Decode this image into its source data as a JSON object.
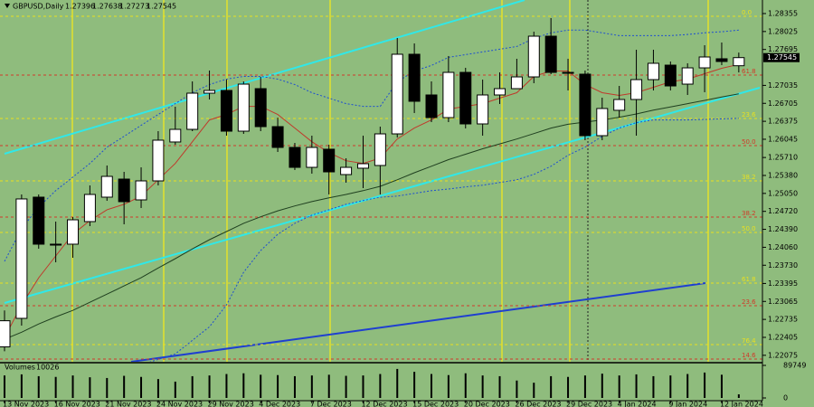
{
  "chart_data": {
    "type": "candlestick",
    "title": "GBPUSD,Daily",
    "categories": [
      "13 Nov 2023",
      null,
      null,
      "16 Nov 2023",
      null,
      null,
      "21 Nov 2023",
      null,
      null,
      "24 Nov 2023",
      null,
      null,
      "29 Nov 2023",
      null,
      null,
      "4 Dec 2023",
      null,
      null,
      "7 Dec 2023",
      null,
      null,
      "12 Dec 2023",
      null,
      null,
      "15 Dec 2023",
      null,
      null,
      "20 Dec 2023",
      null,
      null,
      "26 Dec 2023",
      null,
      null,
      "29 Dec 2023",
      null,
      null,
      "4 Jan 2024",
      null,
      null,
      "9 Jan 2024",
      null,
      null,
      "12 Jan 2024",
      null
    ],
    "open": [
      1.2223,
      1.22754,
      1.24981,
      1.24117,
      1.24117,
      1.24532,
      1.24981,
      1.25313,
      1.24931,
      1.2528,
      1.25995,
      1.26227,
      1.26892,
      1.26942,
      1.26194,
      1.26975,
      1.26277,
      1.25895,
      1.25529,
      1.25862,
      1.25396,
      1.25513,
      1.25563,
      1.26144,
      1.27607,
      1.26859,
      1.26443,
      1.27274,
      1.26327,
      1.26859,
      1.26975,
      1.27191,
      1.27939,
      1.27274,
      1.27241,
      1.26111,
      1.26577,
      1.26776,
      1.27141,
      1.27407,
      1.27058,
      1.27357,
      1.27524,
      1.27396
    ],
    "high": [
      1.229,
      1.25031,
      1.25031,
      1.24532,
      1.24615,
      1.25197,
      1.25563,
      1.25446,
      1.25529,
      1.26194,
      1.26643,
      1.27108,
      1.27308,
      1.27141,
      1.27108,
      1.27191,
      1.26443,
      1.25978,
      1.26111,
      1.25945,
      1.25695,
      1.26111,
      1.26277,
      1.27906,
      1.27806,
      1.27108,
      1.27574,
      1.27358,
      1.27141,
      1.27274,
      1.27524,
      1.28022,
      1.28272,
      1.27524,
      1.27308,
      1.26809,
      1.27025,
      1.2769,
      1.2769,
      1.27474,
      1.27441,
      1.27773,
      1.27823,
      1.27638
    ],
    "low": [
      1.2215,
      1.22621,
      1.24034,
      1.23784,
      1.23867,
      1.24449,
      1.24914,
      1.24482,
      1.24782,
      1.25197,
      1.25945,
      1.26194,
      1.26776,
      1.26111,
      1.26144,
      1.26194,
      1.25812,
      1.2548,
      1.25413,
      1.25031,
      1.25247,
      1.25147,
      1.25031,
      1.26078,
      1.26527,
      1.2636,
      1.2636,
      1.26244,
      1.26111,
      1.26693,
      1.27025,
      1.27075,
      1.27241,
      1.26942,
      1.26028,
      1.26028,
      1.26443,
      1.26111,
      1.26942,
      1.26942,
      1.26859,
      1.26909,
      1.27407,
      1.27273
    ],
    "close": [
      1.2271,
      1.24948,
      1.24117,
      1.241,
      1.24565,
      1.25031,
      1.25363,
      1.24898,
      1.2528,
      1.26028,
      1.26227,
      1.26892,
      1.26942,
      1.26194,
      1.27058,
      1.26277,
      1.25895,
      1.25529,
      1.25895,
      1.25446,
      1.25529,
      1.25596,
      1.26144,
      1.27607,
      1.26743,
      1.26443,
      1.27274,
      1.26327,
      1.26859,
      1.26975,
      1.27191,
      1.27939,
      1.27274,
      1.27258,
      1.26111,
      1.2661,
      1.26776,
      1.27141,
      1.27441,
      1.27025,
      1.27357,
      1.27557,
      1.27474,
      1.27545
    ],
    "ylim": [
      1.21956,
      1.28604
    ],
    "yticks": [
      1.28355,
      1.28025,
      1.27695,
      1.27035,
      1.26705,
      1.26375,
      1.26045,
      {
        "value": 1.2571,
        "label": "1.25710"
      },
      {
        "value": 1.2538,
        "label": "1.25380"
      },
      {
        "value": 1.2505,
        "label": "1.25050"
      },
      {
        "value": 1.2472,
        "label": "1.24720"
      },
      {
        "value": 1.2439,
        "label": "1.24390"
      },
      {
        "value": 1.2406,
        "label": "1.24060"
      },
      {
        "value": 1.2373,
        "label": "1.23730"
      },
      1.23395,
      1.23065,
      1.22735,
      1.22405,
      1.22075
    ],
    "bull_color": "#ffffff",
    "bear_color": "#000000",
    "background": "#8fbc7d",
    "overlays": [
      {
        "color": "#c0392b",
        "dash": false,
        "values": [
          1.224,
          1.23,
          1.235,
          1.239,
          1.243,
          1.2455,
          1.2475,
          1.2485,
          1.25,
          1.253,
          1.256,
          1.26,
          1.264,
          1.265,
          1.2665,
          1.2665,
          1.265,
          1.2625,
          1.26,
          1.258,
          1.2565,
          1.256,
          1.257,
          1.2605,
          1.2625,
          1.264,
          1.266,
          1.2665,
          1.267,
          1.268,
          1.269,
          1.272,
          1.273,
          1.273,
          1.2705,
          1.269,
          1.2685,
          1.269,
          1.27,
          1.271,
          1.2715,
          1.2725,
          1.2735,
          1.2742
        ]
      },
      {
        "color": "#1f3f1f",
        "dash": false,
        "values": [
          1.2237,
          1.225,
          1.2265,
          1.2278,
          1.229,
          1.2305,
          1.232,
          1.2335,
          1.235,
          1.2368,
          1.2385,
          1.2403,
          1.242,
          1.2435,
          1.245,
          1.2462,
          1.2473,
          1.2482,
          1.249,
          1.2497,
          1.2503,
          1.251,
          1.2518,
          1.253,
          1.2543,
          1.2555,
          1.2567,
          1.2577,
          1.2587,
          1.2596,
          1.2605,
          1.2615,
          1.2625,
          1.2632,
          1.2636,
          1.264,
          1.2645,
          1.2651,
          1.2658,
          1.2664,
          1.267,
          1.2676,
          1.2682,
          1.2688
        ]
      },
      {
        "color": "#1f4fd0",
        "dash": true,
        "values": [
          1.238,
          1.244,
          1.248,
          1.251,
          1.2535,
          1.256,
          1.259,
          1.261,
          1.263,
          1.265,
          1.267,
          1.269,
          1.2705,
          1.2715,
          1.272,
          1.272,
          1.2715,
          1.2705,
          1.269,
          1.268,
          1.267,
          1.2665,
          1.2665,
          1.271,
          1.273,
          1.274,
          1.2755,
          1.276,
          1.2765,
          1.277,
          1.2775,
          1.279,
          1.28,
          1.2805,
          1.2805,
          1.28,
          1.2795,
          1.2795,
          1.2795,
          1.2795,
          1.2797,
          1.28,
          1.2802,
          1.2805
        ]
      },
      {
        "color": "#1f4fd0",
        "dash": true,
        "values": [
          1.214,
          1.215,
          1.216,
          1.2165,
          1.217,
          1.2175,
          1.218,
          1.2185,
          1.219,
          1.22,
          1.221,
          1.2235,
          1.226,
          1.23,
          1.236,
          1.24,
          1.243,
          1.245,
          1.2465,
          1.2475,
          1.2485,
          1.2492,
          1.2498,
          1.25,
          1.2505,
          1.251,
          1.2513,
          1.2517,
          1.252,
          1.2525,
          1.253,
          1.254,
          1.2555,
          1.2575,
          1.259,
          1.261,
          1.2625,
          1.2635,
          1.264,
          1.264,
          1.264,
          1.2641,
          1.2642,
          1.2643
        ]
      }
    ],
    "levels": [
      {
        "label": "0.0",
        "value": 1.28305,
        "color": "#e8e020"
      },
      {
        "label": "61.8",
        "value": 1.27225,
        "color": "#d03a2a"
      },
      {
        "label": "23.6",
        "value": 1.26427,
        "color": "#e8e020"
      },
      {
        "label": "50.0",
        "value": 1.25928,
        "color": "#d03a2a"
      },
      {
        "label": "38.2",
        "value": 1.2528,
        "color": "#e8e020"
      },
      {
        "label": "38.2",
        "value": 1.24615,
        "color": "#d03a2a"
      },
      {
        "label": "50.0",
        "value": 1.24333,
        "color": "#e8e020"
      },
      {
        "label": "61.8",
        "value": 1.23402,
        "color": "#e8e020"
      },
      {
        "label": "23.6",
        "value": 1.22986,
        "color": "#d03a2a"
      },
      {
        "label": "76.4",
        "value": 1.22272,
        "color": "#e8e020"
      },
      {
        "label": "14.6",
        "value": 1.22006,
        "color": "#d03a2a"
      }
    ],
    "volume": {
      "title": "Volumes",
      "values": [
        62000,
        65000,
        60000,
        58000,
        62000,
        57000,
        55000,
        61000,
        58000,
        52000,
        45000,
        60000,
        62000,
        66000,
        68000,
        64000,
        63000,
        60000,
        62000,
        64000,
        61000,
        62000,
        66000,
        80000,
        72000,
        66000,
        63000,
        68000,
        62000,
        60000,
        48000,
        42000,
        60000,
        58000,
        62000,
        67000,
        62000,
        65000,
        60000,
        62000,
        66000,
        70000,
        64000,
        10026
      ],
      "ylim": [
        0,
        89749
      ],
      "yticks": [
        89749,
        0
      ]
    }
  }
}
